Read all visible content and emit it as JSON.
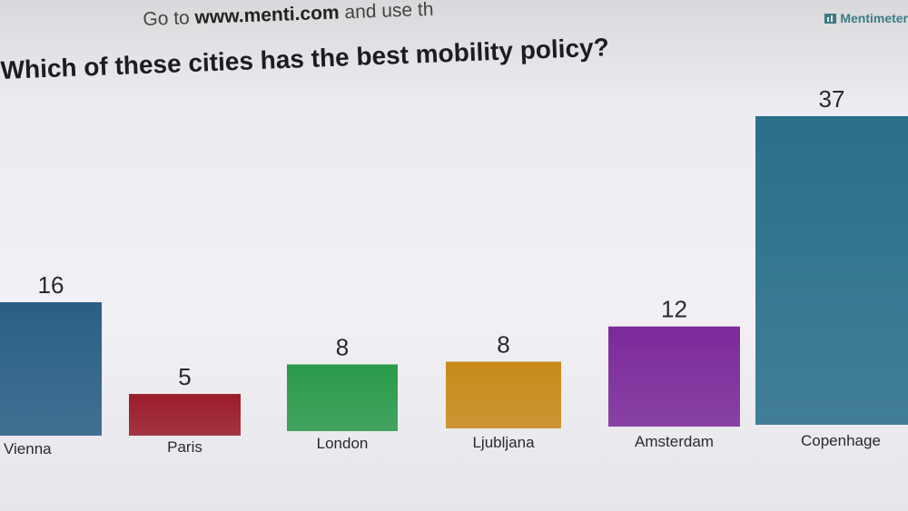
{
  "header": {
    "instruction_prefix": "Go to",
    "instruction_url": "www.menti.com",
    "instruction_suffix": "and use th",
    "brand": "Mentimeter"
  },
  "chart_data": {
    "type": "bar",
    "title": "Which of these cities has the best mobility policy?",
    "categories": [
      "Vienna",
      "Paris",
      "London",
      "Ljubljana",
      "Amsterdam",
      "Copenhage"
    ],
    "values": [
      16,
      5,
      8,
      8,
      12,
      37
    ],
    "colors": [
      "#2a5f86",
      "#9a1c2a",
      "#2a9a4a",
      "#c88a1a",
      "#7b2a9a",
      "#2a6f8a"
    ],
    "ylim": [
      0,
      37
    ],
    "grid": false,
    "legend": "none",
    "xlabel": "",
    "ylabel": ""
  }
}
